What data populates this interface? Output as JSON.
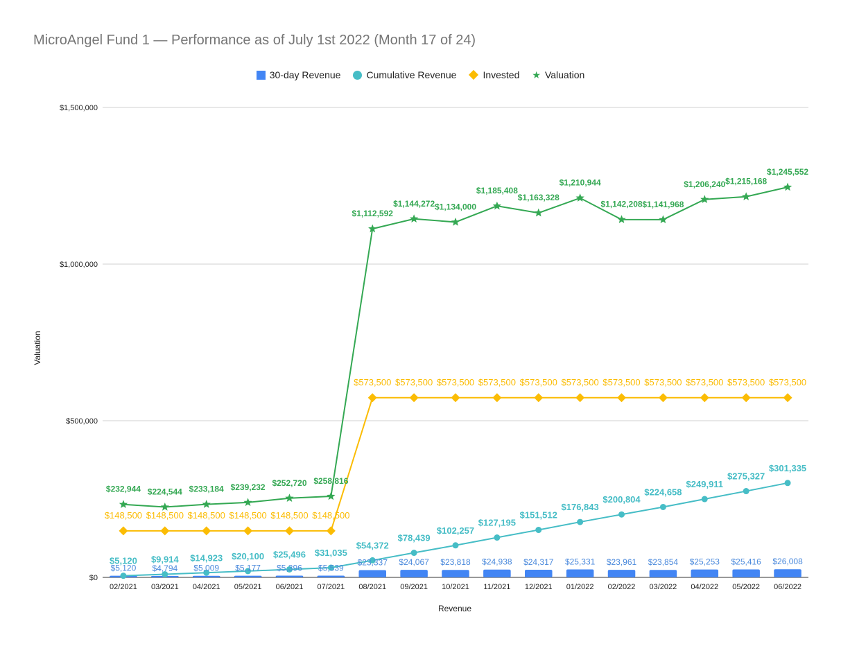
{
  "chart_data": {
    "type": "bar",
    "title": "MicroAngel Fund 1 — Performance as of July 1st 2022 (Month 17 of 24)",
    "xlabel": "Revenue",
    "ylabel": "Valuation",
    "ylim": [
      0,
      1500000
    ],
    "yticks": [
      "$0",
      "$500,000",
      "$1,000,000",
      "$1,500,000"
    ],
    "ytick_values": [
      0,
      500000,
      1000000,
      1500000
    ],
    "grid": true,
    "legend_position": "top",
    "categories": [
      "02/2021",
      "03/2021",
      "04/2021",
      "05/2021",
      "06/2021",
      "07/2021",
      "08/2021",
      "09/2021",
      "10/2021",
      "11/2021",
      "12/2021",
      "01/2022",
      "02/2022",
      "03/2022",
      "04/2022",
      "05/2022",
      "06/2022"
    ],
    "series": [
      {
        "name": "30-day Revenue",
        "type": "bar",
        "color": "#4285f4",
        "values": [
          5120,
          4794,
          5009,
          5177,
          5396,
          5539,
          23337,
          24067,
          23818,
          24938,
          24317,
          25331,
          23961,
          23854,
          25253,
          25416,
          26008
        ],
        "labels": [
          "$5,120",
          "$4,794",
          "$5,009",
          "$5,177",
          "$5,396",
          "$5,539",
          "$23,337",
          "$24,067",
          "$23,818",
          "$24,938",
          "$24,317",
          "$25,331",
          "$23,961",
          "$23,854",
          "$25,253",
          "$25,416",
          "$26,008"
        ]
      },
      {
        "name": "Cumulative Revenue",
        "type": "line",
        "marker": "circle",
        "color": "#46bdc6",
        "values": [
          5120,
          9914,
          14923,
          20100,
          25496,
          31035,
          54372,
          78439,
          102257,
          127195,
          151512,
          176843,
          200804,
          224658,
          249911,
          275327,
          301335
        ],
        "labels": [
          "$5,120",
          "$9,914",
          "$14,923",
          "$20,100",
          "$25,496",
          "$31,035",
          "$54,372",
          "$78,439",
          "$102,257",
          "$127,195",
          "$151,512",
          "$176,843",
          "$200,804",
          "$224,658",
          "$249,911",
          "$275,327",
          "$301,335"
        ]
      },
      {
        "name": "Invested",
        "type": "line",
        "marker": "diamond",
        "color": "#fbbc04",
        "values": [
          148500,
          148500,
          148500,
          148500,
          148500,
          148500,
          573500,
          573500,
          573500,
          573500,
          573500,
          573500,
          573500,
          573500,
          573500,
          573500,
          573500
        ],
        "labels": [
          "$148,500",
          "$148,500",
          "$148,500",
          "$148,500",
          "$148,500",
          "$148,500",
          "$573,500",
          "$573,500",
          "$573,500",
          "$573,500",
          "$573,500",
          "$573,500",
          "$573,500",
          "$573,500",
          "$573,500",
          "$573,500",
          "$573,500"
        ]
      },
      {
        "name": "Valuation",
        "type": "line",
        "marker": "star",
        "color": "#34a853",
        "values": [
          232944,
          224544,
          233184,
          239232,
          252720,
          258816,
          1112592,
          1144272,
          1134000,
          1185408,
          1163328,
          1210944,
          1142208,
          1141968,
          1206240,
          1215168,
          1245552
        ],
        "labels": [
          "$232,944",
          "$224,544",
          "$233,184",
          "$239,232",
          "$252,720",
          "$258,816",
          "$1,112,592",
          "$1,144,272",
          "$1,134,000",
          "$1,185,408",
          "$1,163,328",
          "$1,210,944",
          "$1,142,208",
          "$1,141,968",
          "$1,206,240",
          "$1,215,168",
          "$1,245,552"
        ]
      }
    ]
  }
}
